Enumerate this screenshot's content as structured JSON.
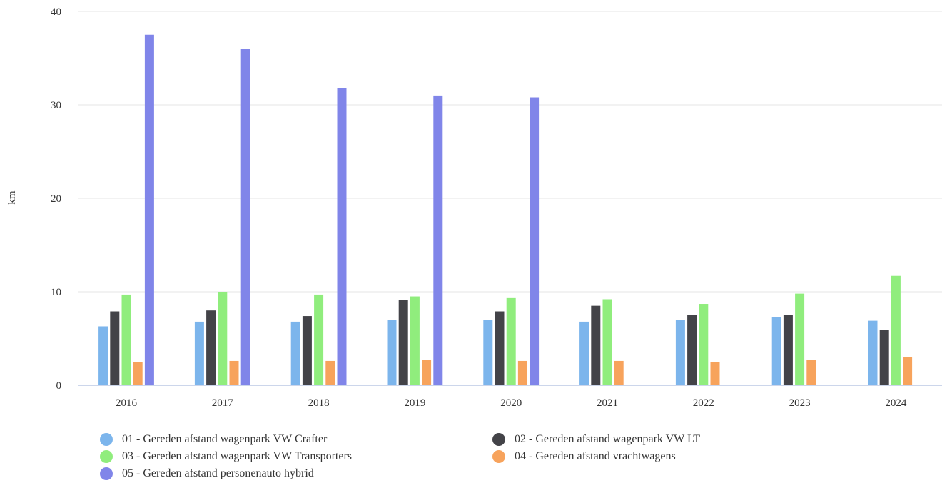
{
  "chart_data": {
    "type": "bar",
    "title": "",
    "xlabel": "",
    "ylabel": "km",
    "ylim": [
      0,
      40
    ],
    "yticks": [
      0,
      10,
      20,
      30,
      40
    ],
    "grid": true,
    "legend_position": "bottom",
    "categories": [
      "2016",
      "2017",
      "2018",
      "2019",
      "2020",
      "2021",
      "2022",
      "2023",
      "2024"
    ],
    "series": [
      {
        "name": "01 - Gereden afstand wagenpark VW Crafter",
        "color": "#7cb5ec",
        "values": [
          6.3,
          6.8,
          6.8,
          7.0,
          7.0,
          6.8,
          7.0,
          7.3,
          6.9
        ]
      },
      {
        "name": "02 - Gereden afstand wagenpark VW LT",
        "color": "#434348",
        "values": [
          7.9,
          8.0,
          7.4,
          9.1,
          7.9,
          8.5,
          7.5,
          7.5,
          5.9
        ]
      },
      {
        "name": "03 - Gereden afstand wagenpark VW Transporters",
        "color": "#90ed7d",
        "values": [
          9.7,
          10.0,
          9.7,
          9.5,
          9.4,
          9.2,
          8.7,
          9.8,
          11.7
        ]
      },
      {
        "name": "04 - Gereden afstand vrachtwagens",
        "color": "#f7a35c",
        "values": [
          2.5,
          2.6,
          2.6,
          2.7,
          2.6,
          2.6,
          2.5,
          2.7,
          3.0
        ]
      },
      {
        "name": "05 - Gereden afstand personenauto hybrid",
        "color": "#8085e9",
        "values": [
          37.5,
          36.0,
          31.8,
          31.0,
          30.8,
          null,
          null,
          null,
          null
        ]
      }
    ]
  }
}
